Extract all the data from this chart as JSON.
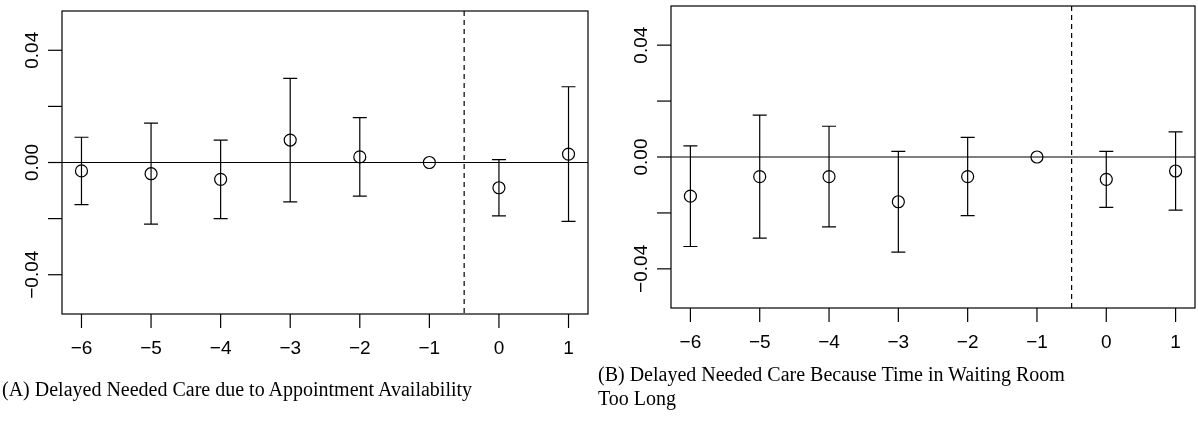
{
  "chart_data": [
    {
      "type": "scatter",
      "title": "(A) Delayed Needed Care due to Appointment Availability",
      "marker": "circle",
      "series": [
        {
          "color": "#000000",
          "x": [
            -6,
            -5,
            -4,
            -3,
            -2,
            -1,
            0,
            1
          ],
          "values": [
            -0.003,
            -0.004,
            -0.006,
            0.008,
            0.002,
            0,
            -0.009,
            0.003
          ],
          "errors": [
            [
              -0.015,
              0.009
            ],
            [
              -0.022,
              0.014
            ],
            [
              -0.02,
              0.008
            ],
            [
              -0.014,
              0.03
            ],
            [
              -0.012,
              0.016
            ],
            null,
            [
              -0.019,
              0.001
            ],
            [
              -0.021,
              0.027
            ]
          ]
        }
      ],
      "xlim": [
        -6.28,
        1.28
      ],
      "ylim": [
        -0.054,
        0.054
      ],
      "xticks": [
        {
          "value": -6,
          "label": "−6"
        },
        {
          "value": -5,
          "label": "−5"
        },
        {
          "value": -4,
          "label": "−4"
        },
        {
          "value": -3,
          "label": "−3"
        },
        {
          "value": -2,
          "label": "−2"
        },
        {
          "value": -1,
          "label": "−1"
        },
        {
          "value": 0,
          "label": "0"
        },
        {
          "value": 1,
          "label": "1"
        }
      ],
      "yticks": [
        {
          "value": -0.04,
          "label": "−0.04"
        },
        {
          "value": -0.02,
          "label": null
        },
        {
          "value": 0,
          "label": "0.00"
        },
        {
          "value": 0.02,
          "label": null
        },
        {
          "value": 0.04,
          "label": "0.04"
        }
      ],
      "ref_lines": [
        {
          "axis": "y",
          "value": 0,
          "line_style": "solid"
        },
        {
          "axis": "x",
          "value": -0.5,
          "line_style": "dashed"
        }
      ]
    },
    {
      "type": "scatter",
      "title": "(B) Delayed Needed Care Because Time in Waiting Room Too Long",
      "marker": "circle",
      "series": [
        {
          "color": "#000000",
          "x": [
            -6,
            -5,
            -4,
            -3,
            -2,
            -1,
            0,
            1
          ],
          "values": [
            -0.014,
            -0.007,
            -0.007,
            -0.016,
            -0.007,
            0,
            -0.008,
            -0.005
          ],
          "errors": [
            [
              -0.032,
              0.004
            ],
            [
              -0.029,
              0.015
            ],
            [
              -0.025,
              0.011
            ],
            [
              -0.034,
              0.002
            ],
            [
              -0.021,
              0.007
            ],
            null,
            [
              -0.018,
              0.002
            ],
            [
              -0.019,
              0.009
            ]
          ]
        }
      ],
      "xlim": [
        -6.28,
        1.28
      ],
      "ylim": [
        -0.054,
        0.054
      ],
      "xticks": [
        {
          "value": -6,
          "label": "−6"
        },
        {
          "value": -5,
          "label": "−5"
        },
        {
          "value": -4,
          "label": "−4"
        },
        {
          "value": -3,
          "label": "−3"
        },
        {
          "value": -2,
          "label": "−2"
        },
        {
          "value": -1,
          "label": "−1"
        },
        {
          "value": 0,
          "label": "0"
        },
        {
          "value": 1,
          "label": "1"
        }
      ],
      "yticks": [
        {
          "value": -0.04,
          "label": "−0.04"
        },
        {
          "value": -0.02,
          "label": null
        },
        {
          "value": 0,
          "label": "0.00"
        },
        {
          "value": 0.02,
          "label": null
        },
        {
          "value": 0.04,
          "label": "0.04"
        }
      ],
      "ref_lines": [
        {
          "axis": "y",
          "value": 0,
          "line_style": "solid"
        },
        {
          "axis": "x",
          "value": -0.5,
          "line_style": "dashed"
        }
      ]
    }
  ]
}
